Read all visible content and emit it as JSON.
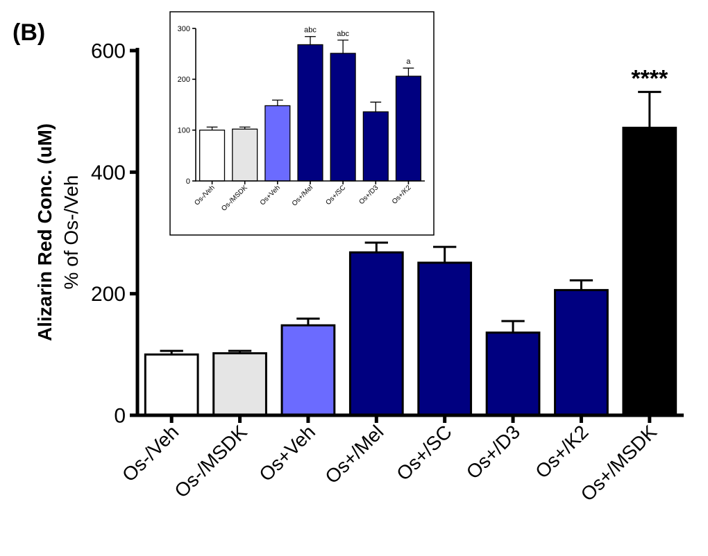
{
  "panel_label": "(B)",
  "chart_data": [
    {
      "id": "main",
      "type": "bar",
      "title": "",
      "ylabel_line1": "Alizarin Red Conc. (uM)",
      "ylabel_line2": "% of Os-/Veh",
      "xlabel": "",
      "ylim": [
        0,
        600
      ],
      "yticks": [
        0,
        200,
        400,
        600
      ],
      "grid": false,
      "categories": [
        "Os-/Veh",
        "Os-/MSDK",
        "Os+Veh",
        "Os+/Mel",
        "Os+/SC",
        "Os+/D3",
        "Os+/K2",
        "Os+/MSDK"
      ],
      "values": [
        100,
        102,
        148,
        268,
        251,
        136,
        206,
        473
      ],
      "errors": [
        6,
        4,
        11,
        16,
        26,
        19,
        16,
        59
      ],
      "colors": [
        "#ffffff",
        "#e5e5e5",
        "#6b6bff",
        "#000080",
        "#000080",
        "#000080",
        "#000080",
        "#000000"
      ],
      "annotations": [
        "",
        "",
        "",
        "",
        "",
        "",
        "",
        "****"
      ]
    },
    {
      "id": "inset",
      "type": "bar",
      "title": "",
      "ylabel": "",
      "xlabel": "",
      "ylim": [
        0,
        300
      ],
      "yticks": [
        0,
        100,
        200,
        300
      ],
      "grid": false,
      "categories": [
        "Os-/Veh",
        "Os-/MSDK",
        "Os+Veh",
        "Os+/Mel",
        "Os+/SC",
        "Os+/D3",
        "Os+/K2"
      ],
      "values": [
        100,
        102,
        148,
        268,
        251,
        136,
        206
      ],
      "errors": [
        6,
        4,
        11,
        16,
        26,
        19,
        16
      ],
      "colors": [
        "#ffffff",
        "#e5e5e5",
        "#6b6bff",
        "#000080",
        "#000080",
        "#000080",
        "#000080"
      ],
      "annotations": [
        "",
        "",
        "",
        "abc",
        "abc",
        "",
        "a"
      ]
    }
  ]
}
